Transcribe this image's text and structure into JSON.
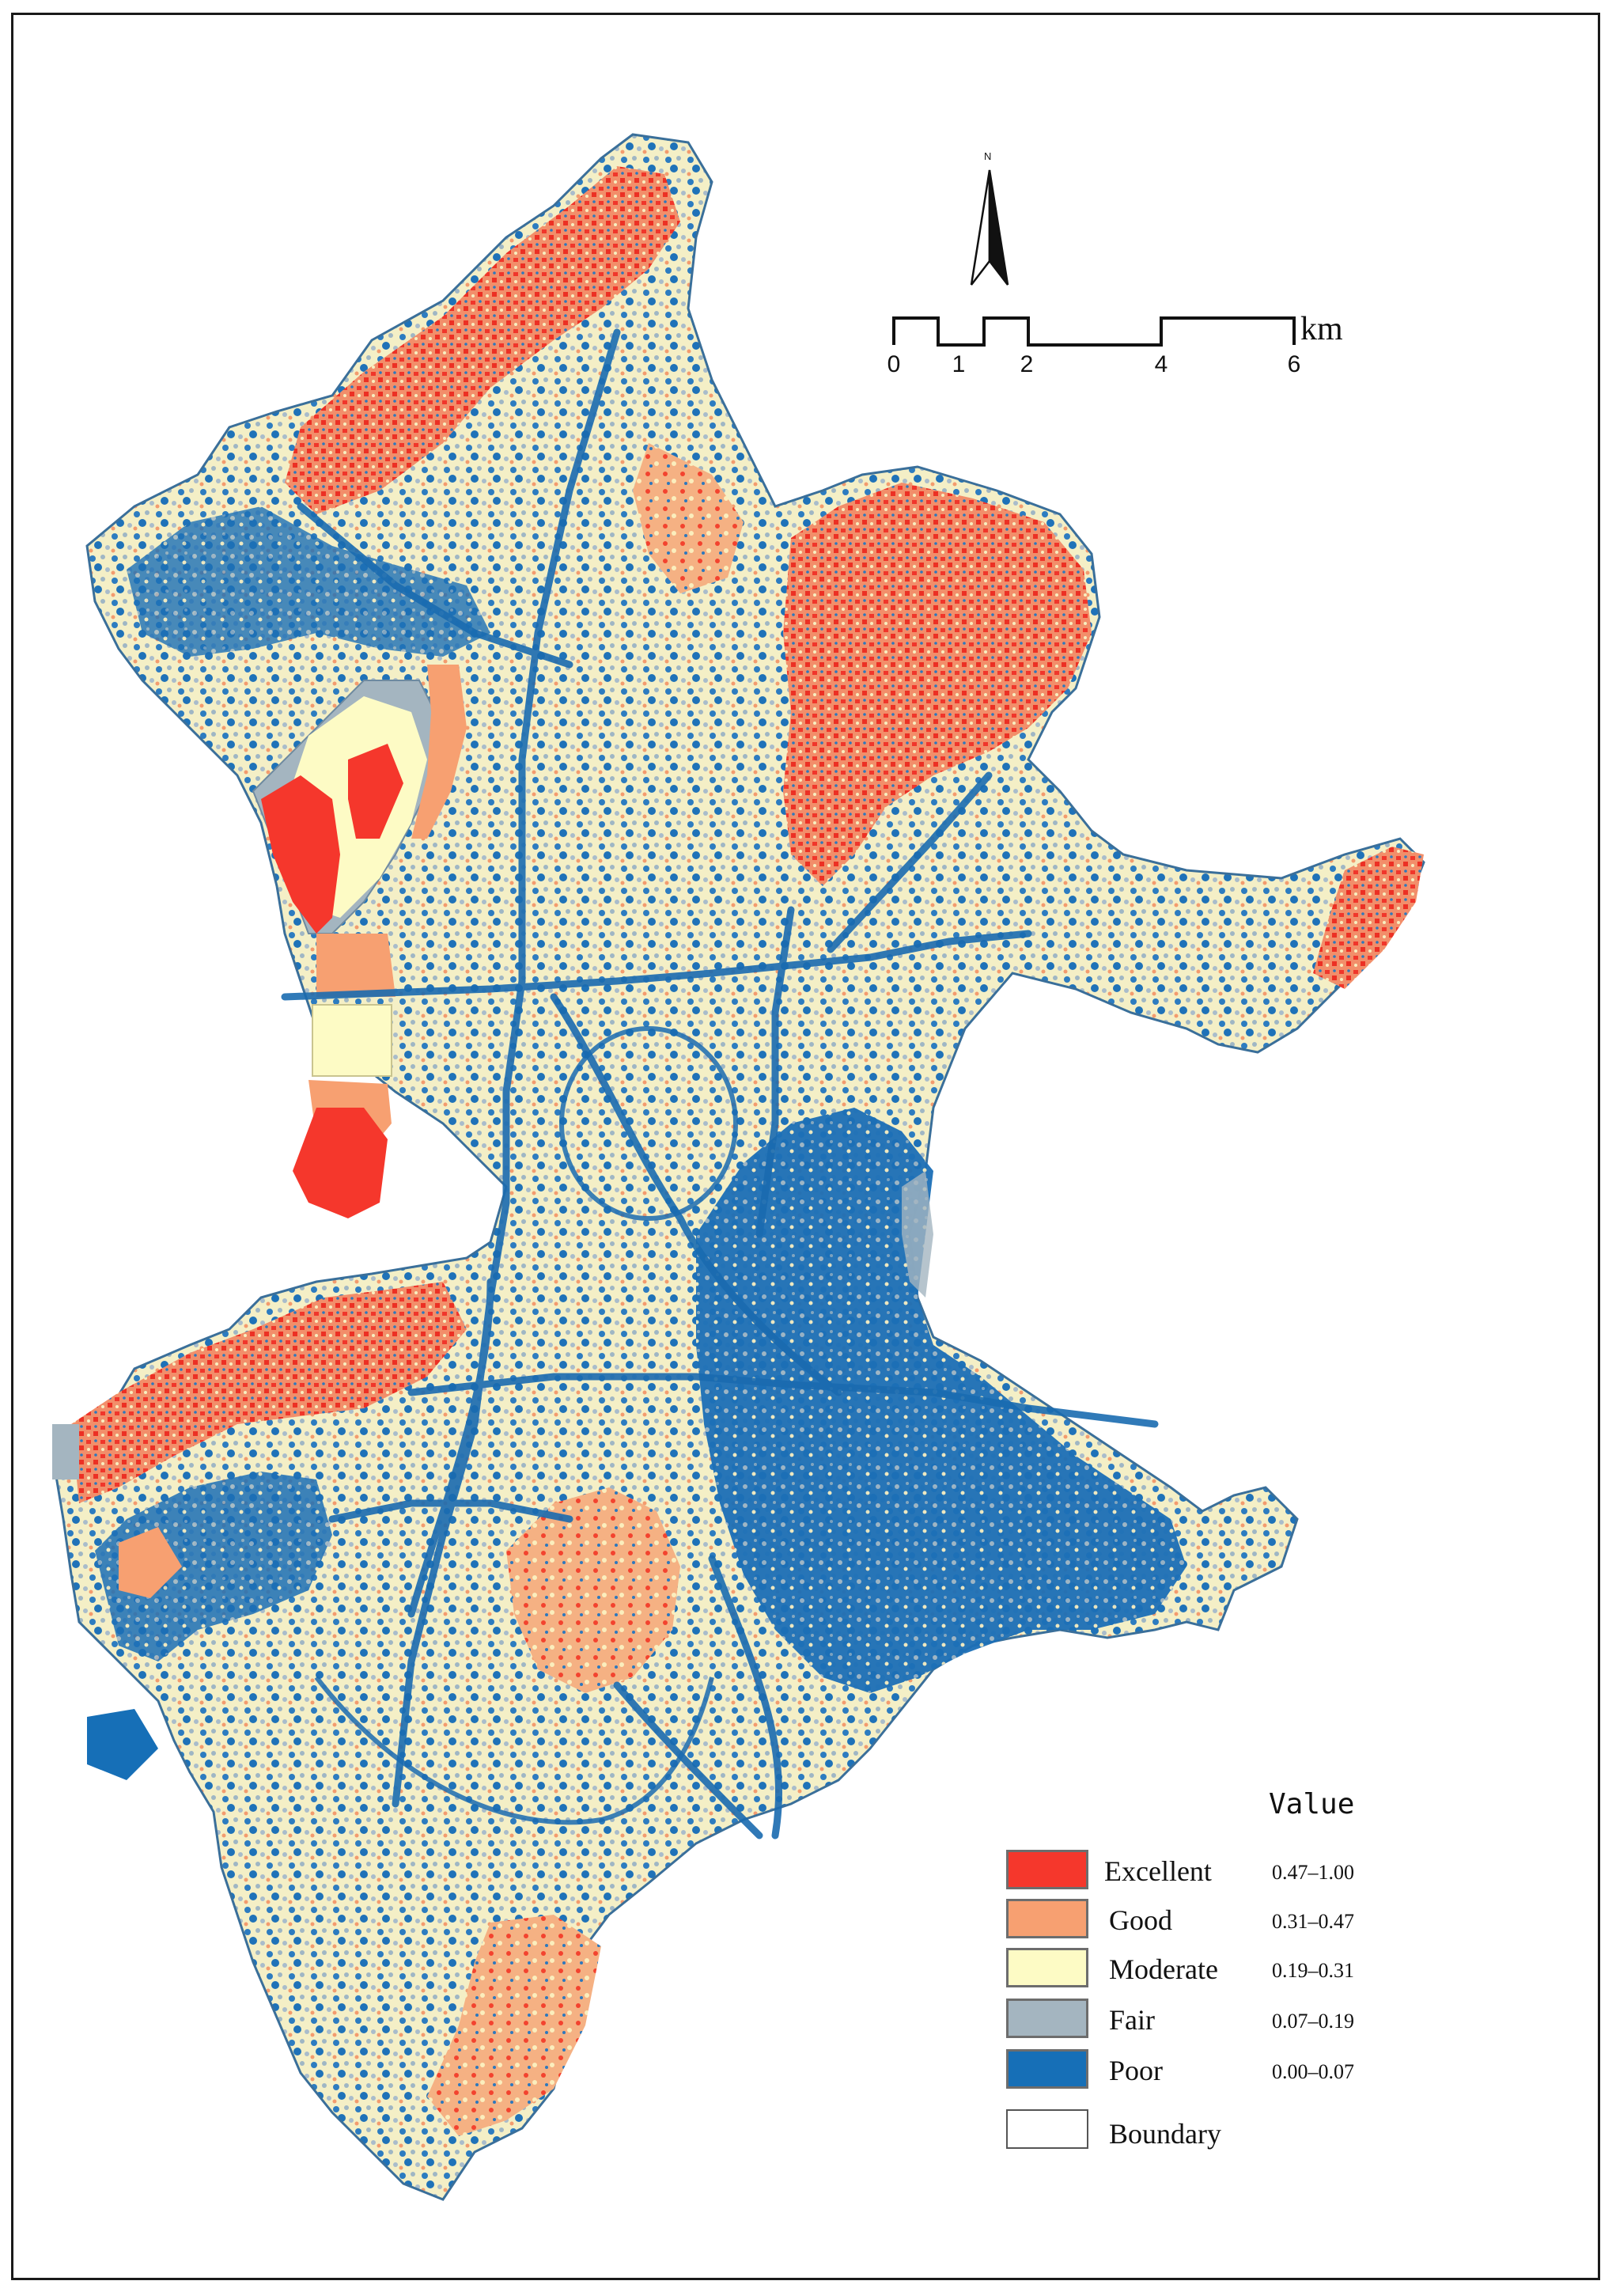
{
  "map": {
    "north_label": "N",
    "scale": {
      "ticks": [
        "0",
        "1",
        "2",
        "4",
        "6"
      ],
      "unit": "km"
    },
    "legend": {
      "title": "Value",
      "classes": [
        {
          "label": "Excellent",
          "range": "0.47–1.00",
          "color": "#f5372c"
        },
        {
          "label": "Good",
          "range": "0.31–0.47",
          "color": "#f7a071"
        },
        {
          "label": "Moderate",
          "range": "0.19–0.31",
          "color": "#fdfbc5"
        },
        {
          "label": "Fair",
          "range": "0.07–0.19",
          "color": "#a4b5c0"
        },
        {
          "label": "Poor",
          "range": "0.00–0.07",
          "color": "#166fb7"
        }
      ],
      "boundary_label": "Boundary",
      "boundary_color": "#ffffff"
    }
  }
}
